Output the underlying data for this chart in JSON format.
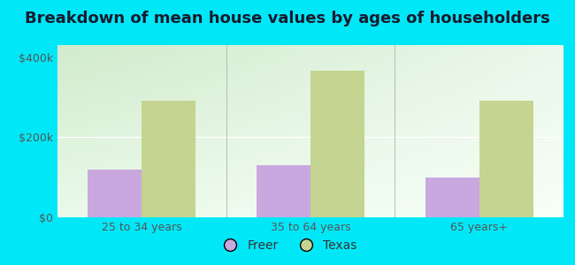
{
  "title": "Breakdown of mean house values by ages of householders",
  "categories": [
    "25 to 34 years",
    "35 to 64 years",
    "65 years+"
  ],
  "freer_values": [
    120000,
    130000,
    100000
  ],
  "texas_values": [
    290000,
    365000,
    290000
  ],
  "freer_color": "#c9a8e0",
  "texas_color": "#c5d491",
  "background_outer": "#00e8f8",
  "ylabel_ticks": [
    0,
    200000,
    400000
  ],
  "ylabel_labels": [
    "$0",
    "$200k",
    "$400k"
  ],
  "ylim": [
    0,
    430000
  ],
  "bar_width": 0.32,
  "legend_labels": [
    "Freer",
    "Texas"
  ],
  "title_fontsize": 13,
  "tick_fontsize": 9,
  "legend_fontsize": 10
}
